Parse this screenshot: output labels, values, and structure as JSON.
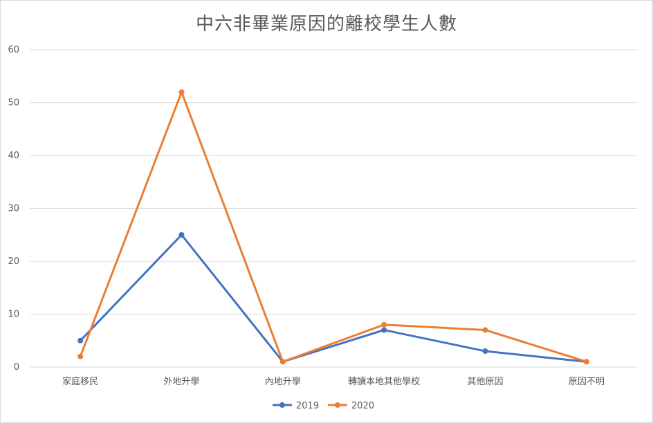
{
  "chart_data": {
    "type": "line",
    "title": "中六非畢業原因的離校學生人數",
    "xlabel": "",
    "ylabel": "",
    "ylim": [
      0,
      60
    ],
    "yticks": [
      0,
      10,
      20,
      30,
      40,
      50,
      60
    ],
    "grid": true,
    "legend_position": "bottom",
    "categories": [
      "家庭移民",
      "外地升學",
      "內地升學",
      "轉讀本地其他學校",
      "其他原因",
      "原因不明"
    ],
    "series": [
      {
        "name": "2019",
        "color": "#4472c4",
        "values": [
          5,
          25,
          1,
          7,
          3,
          1
        ]
      },
      {
        "name": "2020",
        "color": "#ed7d31",
        "values": [
          2,
          52,
          1,
          8,
          7,
          1
        ]
      }
    ]
  }
}
